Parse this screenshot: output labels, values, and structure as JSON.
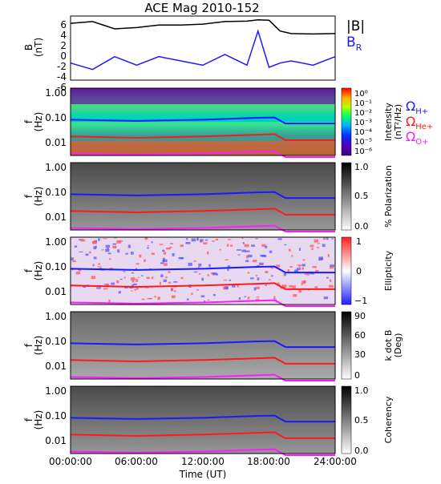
{
  "title": "ACE Mag 2010-152",
  "xaxis": {
    "label": "Time (UT)",
    "ticks": [
      "00:00:00",
      "06:00:00",
      "12:00:00",
      "18:00:00",
      "24:00:00"
    ],
    "range_hours": [
      0,
      24
    ]
  },
  "legend_top": {
    "b_total": "|B|",
    "b_r_main": "B",
    "b_r_sub": "R",
    "colors": {
      "b_total": "#000000",
      "b_r": "#1a1aff"
    }
  },
  "legend_gyro": {
    "omega": "Ω",
    "h_sub": "H+",
    "he_sub": "He+",
    "o_sub": "O+",
    "colors": {
      "h": "#1a1aff",
      "he": "#ff1a1a",
      "o": "#ff1aff"
    }
  },
  "panels": [
    {
      "id": "b",
      "ylabel_main": "B",
      "ylabel_sub": "(nT)",
      "yticks": [
        "6",
        "4",
        "2",
        "0",
        "-2",
        "-4",
        "-6"
      ]
    },
    {
      "id": "intensity",
      "ylabel_main": "f",
      "ylabel_sub": "(Hz)",
      "yticks": [
        "1.00",
        "0.10",
        "0.01"
      ],
      "cbar_label": "Intensity",
      "cbar_unit": "(nT²/Hz)",
      "cbar_ticks": [
        "10⁰",
        "10⁻¹",
        "10⁻²",
        "10⁻³",
        "10⁻⁴",
        "10⁻⁵",
        "10⁻⁶"
      ]
    },
    {
      "id": "polarization",
      "ylabel_main": "f",
      "ylabel_sub": "(Hz)",
      "yticks": [
        "1.00",
        "0.10",
        "0.01"
      ],
      "cbar_label": "% Polarization",
      "cbar_unit": "",
      "cbar_ticks": [
        "1.0",
        "0.5",
        "0.0"
      ]
    },
    {
      "id": "ellipticity",
      "ylabel_main": "f",
      "ylabel_sub": "(Hz)",
      "yticks": [
        "1.00",
        "0.10",
        "0.01"
      ],
      "cbar_label": "Ellipticity",
      "cbar_unit": "",
      "cbar_ticks": [
        "1",
        "0",
        "−1"
      ]
    },
    {
      "id": "kdotb",
      "ylabel_main": "f",
      "ylabel_sub": "(Hz)",
      "yticks": [
        "1.00",
        "0.10",
        "0.01"
      ],
      "cbar_label": "k dot B",
      "cbar_unit": "(Deg)",
      "cbar_ticks": [
        "90",
        "60",
        "30",
        "0"
      ]
    },
    {
      "id": "coherency",
      "ylabel_main": "f",
      "ylabel_sub": "(Hz)",
      "yticks": [
        "1.00",
        "0.10",
        "0.01"
      ],
      "cbar_label": "Coherency",
      "cbar_unit": "",
      "cbar_ticks": [
        "1.0",
        "0.5",
        "0.0"
      ]
    }
  ],
  "chart_data": [
    {
      "type": "line",
      "title": "ACE Mag 2010-152",
      "xlabel": "Time (UT)",
      "ylabel": "B (nT)",
      "ylim": [
        -7,
        8
      ],
      "x_hours": [
        0,
        2,
        4,
        6,
        8,
        10,
        12,
        14,
        16,
        17,
        18,
        19,
        20,
        22,
        24
      ],
      "series": [
        {
          "name": "|B|",
          "values": [
            6.3,
            6.7,
            5.0,
            5.3,
            5.9,
            5.9,
            6.1,
            6.7,
            6.8,
            7.1,
            7.0,
            4.5,
            3.9,
            3.8,
            3.9
          ]
        },
        {
          "name": "BR",
          "values": [
            -3.0,
            -4.5,
            -1.5,
            -3.5,
            -1.5,
            -2.5,
            -3.5,
            -1.0,
            -3.5,
            4.5,
            -4.0,
            -3.0,
            -2.5,
            -3.5,
            -1.5
          ]
        }
      ]
    },
    {
      "type": "heatmap",
      "ylabel": "f (Hz)",
      "yscale": "log",
      "ylim": [
        0.004,
        1.0
      ],
      "series": [
        {
          "name": "ΩH+",
          "x_hours": [
            0,
            6,
            12,
            17,
            18.5,
            19.5,
            24
          ],
          "values": [
            0.075,
            0.068,
            0.075,
            0.088,
            0.09,
            0.055,
            0.055
          ]
        },
        {
          "name": "ΩHe+",
          "x_hours": [
            0,
            6,
            12,
            17,
            18.5,
            19.5,
            24
          ],
          "values": [
            0.019,
            0.017,
            0.019,
            0.022,
            0.023,
            0.014,
            0.014
          ]
        },
        {
          "name": "ΩO+",
          "x_hours": [
            0,
            6,
            12,
            17,
            18.5,
            19.5,
            24
          ],
          "values": [
            0.0047,
            0.0043,
            0.0047,
            0.0055,
            0.0057,
            0.0035,
            0.0035
          ]
        }
      ]
    }
  ]
}
